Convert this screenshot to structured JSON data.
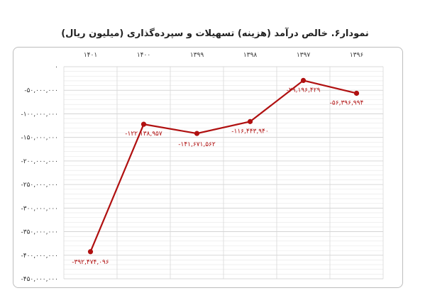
{
  "title": "نمودار۶. خالص درآمد (هزینه) تسهیلات و سپرده‌گذاری (میلیون ریال)",
  "chart_data": {
    "type": "line",
    "title": "نمودار۶. خالص درآمد (هزینه) تسهیلات و سپرده‌گذاری (میلیون ریال)",
    "categories": [
      "۱۳۹۶",
      "۱۳۹۷",
      "۱۳۹۸",
      "۱۳۹۹",
      "۱۴۰۰",
      "۱۴۰۱"
    ],
    "series": [
      {
        "values": [
          -56396994,
          -29196429,
          -116443940,
          -141671562,
          -122138957,
          -392474096
        ],
        "labels": [
          "-۵۶,۳۹۶,۹۹۴",
          "-۲۹,۱۹۶,۴۲۹",
          "-۱۱۶,۴۴۳,۹۴۰",
          "-۱۴۱,۶۷۱,۵۶۲",
          "-۱۲۲,۱۳۸,۹۵۷",
          "-۳۹۲,۴۷۴,۰۹۶"
        ]
      }
    ],
    "ylim": [
      -450000000,
      0
    ],
    "yticks": [
      0,
      -50000000,
      -100000000,
      -150000000,
      -200000000,
      -250000000,
      -300000000,
      -350000000,
      -400000000,
      -450000000
    ],
    "ytick_labels": [
      "۰",
      "-۵۰,۰۰۰,۰۰۰",
      "-۱۰۰,۰۰۰,۰۰۰",
      "-۱۵۰,۰۰۰,۰۰۰",
      "-۲۰۰,۰۰۰,۰۰۰",
      "-۲۵۰,۰۰۰,۰۰۰",
      "-۳۰۰,۰۰۰,۰۰۰",
      "-۳۵۰,۰۰۰,۰۰۰",
      "-۴۰۰,۰۰۰,۰۰۰",
      "-۴۵۰,۰۰۰,۰۰۰"
    ],
    "x_axis_position": "top",
    "grid": true,
    "line_color": "#b01010"
  }
}
